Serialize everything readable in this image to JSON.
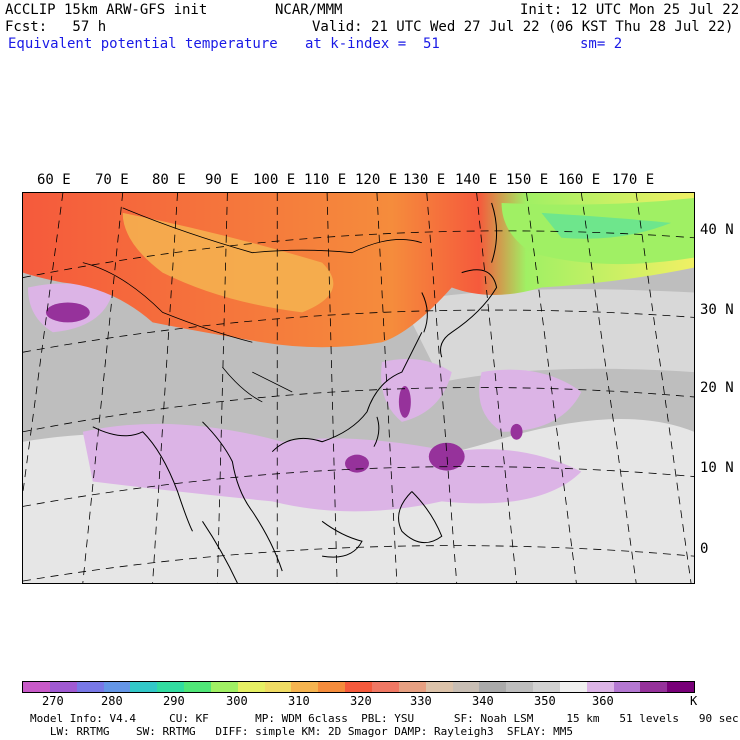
{
  "header": {
    "line1_left": "ACCLIP 15km ARW-GFS init",
    "line1_center": "NCAR/MMM",
    "line1_right": "Init: 12 UTC Mon 25 Jul 22",
    "line2_left": "Fcst:   57 h",
    "line2_right": "Valid: 21 UTC Wed 27 Jul 22 (06 KST Thu 28 Jul 22)",
    "line3_left": "Equivalent potential temperature",
    "line3_center": "at k-index =  51",
    "line3_right": "sm= 2"
  },
  "map": {
    "lon_labels": [
      "60 E",
      "70 E",
      "80 E",
      "90 E",
      "100 E",
      "110 E",
      "120 E",
      "130 E",
      "140 E",
      "150 E",
      "160 E",
      "170 E"
    ],
    "lat_labels": [
      "40 N",
      "30 N",
      "20 N",
      "10 N",
      "0"
    ]
  },
  "colorbar": {
    "colors": [
      "#c85ac8",
      "#a05ad2",
      "#7878e6",
      "#6496e6",
      "#32c8c8",
      "#32dca0",
      "#50e678",
      "#a0f064",
      "#e6f064",
      "#f0dc64",
      "#f5b450",
      "#f58c3c",
      "#f55a3c",
      "#f07864",
      "#e6a082",
      "#dcc3aa",
      "#c8beb4",
      "#aaaaaa",
      "#bebebe",
      "#d2d2d2",
      "#f0f0f0",
      "#dcb4e6",
      "#b478d2",
      "#96329b",
      "#780078"
    ],
    "tick_labels": [
      "270",
      "280",
      "290",
      "300",
      "310",
      "320",
      "330",
      "340",
      "350",
      "360",
      "K"
    ]
  },
  "footer": {
    "line1": "Model Info: V4.4     CU: KF       MP: WDM 6class  PBL: YSU      SF: Noah LSM     15 km   51 levels   90 sec",
    "line2": "   LW: RRTMG    SW: RRTMG   DIFF: simple KM: 2D Smagor DAMP: Rayleigh3  SFLAY: MM5"
  }
}
